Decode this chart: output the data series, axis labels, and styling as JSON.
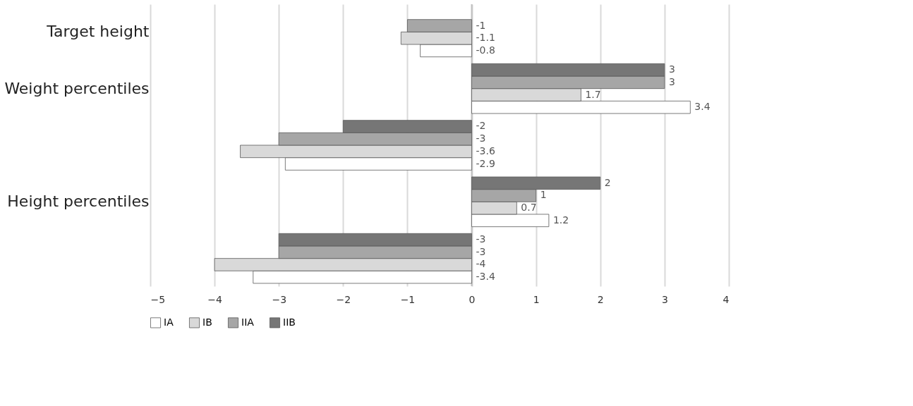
{
  "chart_data": {
    "type": "bar",
    "orientation": "horizontal",
    "categories": [
      "Target height",
      "Weight percentiles",
      null,
      "Height percentiles",
      null
    ],
    "series": [
      {
        "name": "IA",
        "color": "#ffffff",
        "values": [
          -0.8,
          3.4,
          -2.9,
          1.2,
          -3.4
        ]
      },
      {
        "name": "IB",
        "color": "#d9d9d9",
        "values": [
          -1.1,
          1.7,
          -3.6,
          0.7,
          -4
        ]
      },
      {
        "name": "IIA",
        "color": "#a6a6a6",
        "values": [
          -1,
          3,
          -3,
          1,
          -3
        ]
      },
      {
        "name": "IIB",
        "color": "#767676",
        "values": [
          null,
          3,
          -2,
          2,
          -3
        ]
      }
    ],
    "xlim": [
      -5,
      4
    ],
    "xticks": [
      -5,
      -4,
      -3,
      -2,
      -1,
      0,
      1,
      2,
      3,
      4
    ],
    "grid": "x",
    "legend": "bottom",
    "data_labels": true
  }
}
